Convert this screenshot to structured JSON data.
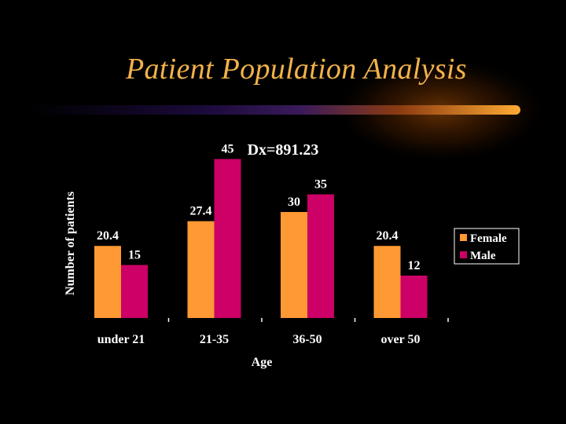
{
  "slide": {
    "title": "Patient Population Analysis"
  },
  "colors": {
    "title": "#F2B24A",
    "female": "#FF9933",
    "male": "#CC0066",
    "background": "#000000",
    "text": "#FFFFFF"
  },
  "chart_data": {
    "type": "bar",
    "title": "Dx=891.23",
    "xlabel": "Age",
    "ylabel": "Number of patients",
    "categories": [
      "under 21",
      "21-35",
      "36-50",
      "over 50"
    ],
    "series": [
      {
        "name": "Female",
        "values": [
          20.4,
          27.4,
          30,
          20.4
        ]
      },
      {
        "name": "Male",
        "values": [
          15,
          45,
          35,
          12
        ]
      }
    ],
    "data_labels": {
      "Female": [
        "20.4",
        "27.4",
        "30",
        "20.4"
      ],
      "Male": [
        "15",
        "45",
        "35",
        "12"
      ]
    },
    "ylim": [
      0,
      50
    ],
    "grid": false,
    "legend": "right"
  }
}
